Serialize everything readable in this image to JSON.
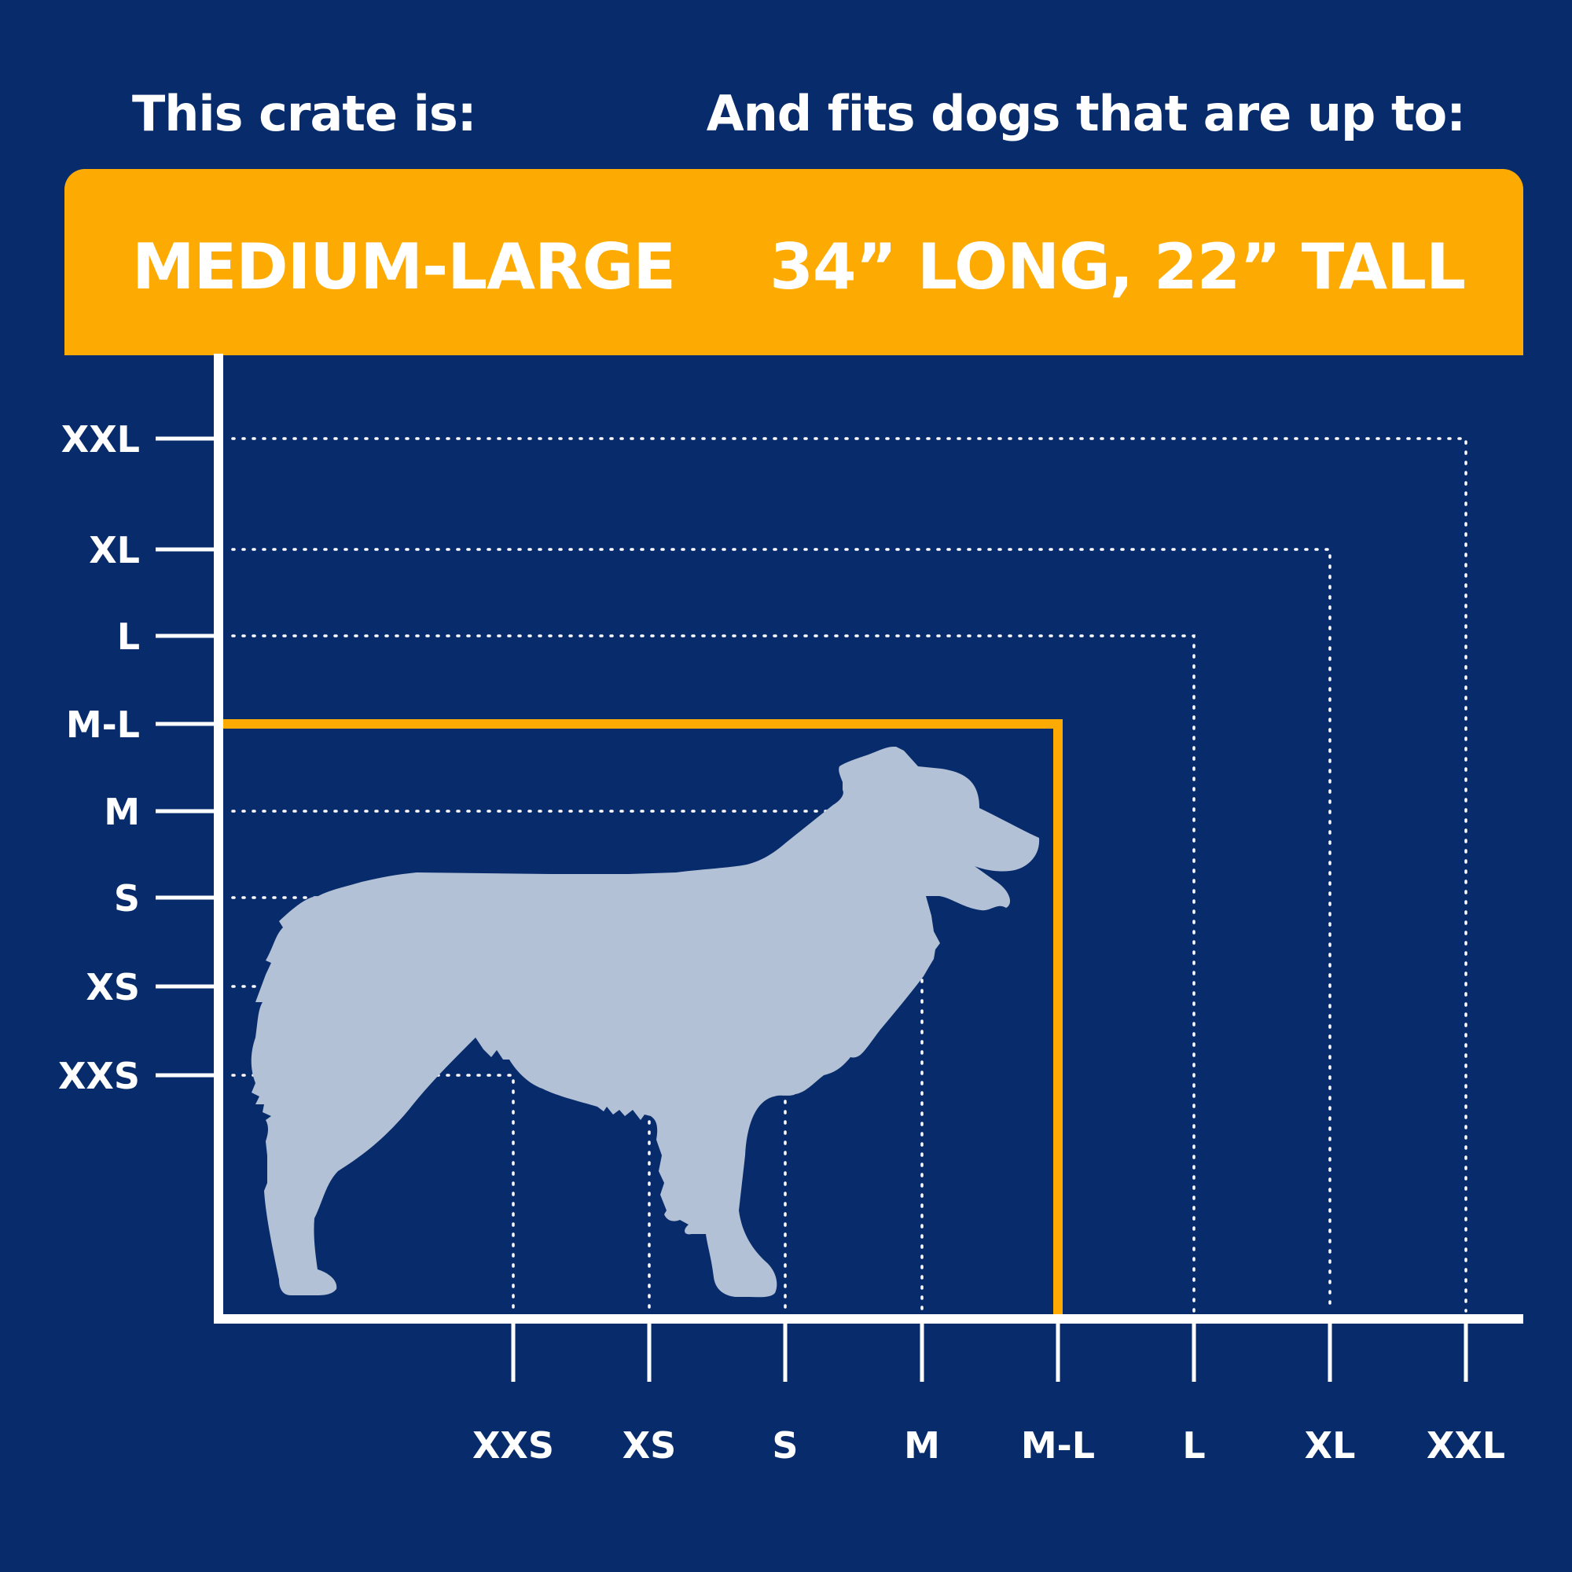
{
  "header": {
    "left": "This crate is:",
    "right": "And fits dogs that are up to:"
  },
  "banner": {
    "size": "MEDIUM-LARGE",
    "dimensions": "34” LONG, 22” TALL"
  },
  "colors": {
    "background": "#082c6b",
    "accent": "#fdab03",
    "axis": "#ffffff",
    "dog": "#b3c1d6"
  },
  "icons": [
    "dog-silhouette-icon"
  ],
  "chart_data": {
    "type": "scatter",
    "categories": [
      "XXS",
      "XS",
      "S",
      "M",
      "M-L",
      "L",
      "XL",
      "XXL"
    ],
    "highlight": "M-L"
  }
}
